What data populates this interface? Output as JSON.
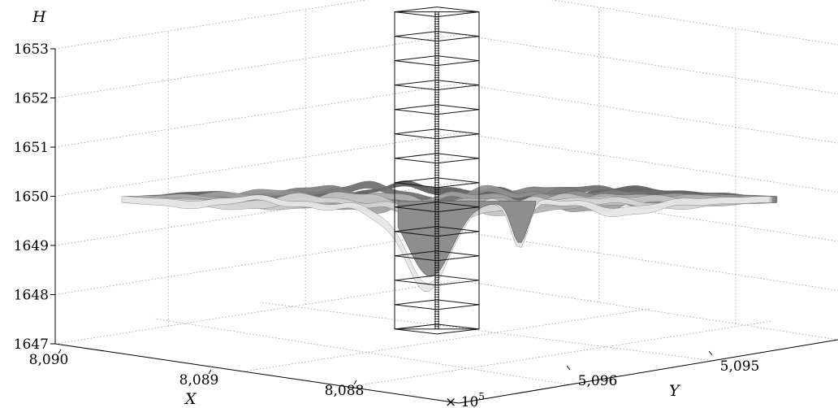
{
  "chart_data": {
    "type": "surface3d",
    "z_axis": {
      "label": "H",
      "ticks": [
        "1647",
        "1648",
        "1649",
        "1650",
        "1651",
        "1652",
        "1653"
      ],
      "range": [
        1647,
        1653
      ]
    },
    "x_axis": {
      "label": "X",
      "ticks": [
        "8,090",
        "8,089",
        "8,088"
      ],
      "multiplier": "× 10",
      "multiplier_exponent": "5"
    },
    "y_axis": {
      "label": "Y",
      "ticks": [
        "5,096",
        "5,095"
      ]
    },
    "grid": true,
    "surface": {
      "colormap": "gray",
      "base_level": 1650,
      "min_level": 1648.5,
      "max_level": 1650.6
    },
    "column": {
      "z_range": [
        1647.3,
        1653.75
      ],
      "sections": 13
    }
  }
}
